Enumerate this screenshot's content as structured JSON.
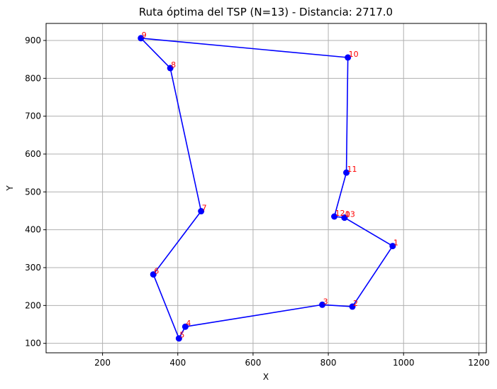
{
  "chart_data": {
    "type": "line",
    "title": "Ruta óptima del TSP (N=13) - Distancia: 2717.0",
    "xlabel": "X",
    "ylabel": "Y",
    "xlim": [
      50,
      1220
    ],
    "ylim": [
      75,
      945
    ],
    "xticks": [
      200,
      400,
      600,
      800,
      1000,
      1200
    ],
    "yticks": [
      100,
      200,
      300,
      400,
      500,
      600,
      700,
      800,
      900
    ],
    "grid": true,
    "colors": {
      "route": "#0000ff",
      "labels": "#ff0000",
      "grid": "#b0b0b0"
    },
    "points": [
      {
        "label": "0",
        "x": 843,
        "y": 432
      },
      {
        "label": "1",
        "x": 971,
        "y": 357
      },
      {
        "label": "2",
        "x": 864,
        "y": 197
      },
      {
        "label": "3",
        "x": 784,
        "y": 202
      },
      {
        "label": "4",
        "x": 420,
        "y": 144
      },
      {
        "label": "5",
        "x": 403,
        "y": 113
      },
      {
        "label": "6",
        "x": 335,
        "y": 282
      },
      {
        "label": "7",
        "x": 462,
        "y": 449
      },
      {
        "label": "8",
        "x": 380,
        "y": 827
      },
      {
        "label": "9",
        "x": 302,
        "y": 906
      },
      {
        "label": "10",
        "x": 852,
        "y": 855
      },
      {
        "label": "11",
        "x": 848,
        "y": 551
      },
      {
        "label": "12",
        "x": 816,
        "y": 435
      },
      {
        "label": "13",
        "x": 843,
        "y": 432
      }
    ],
    "route": [
      "0",
      "1",
      "2",
      "3",
      "4",
      "5",
      "6",
      "7",
      "8",
      "9",
      "10",
      "11",
      "12",
      "13"
    ]
  }
}
